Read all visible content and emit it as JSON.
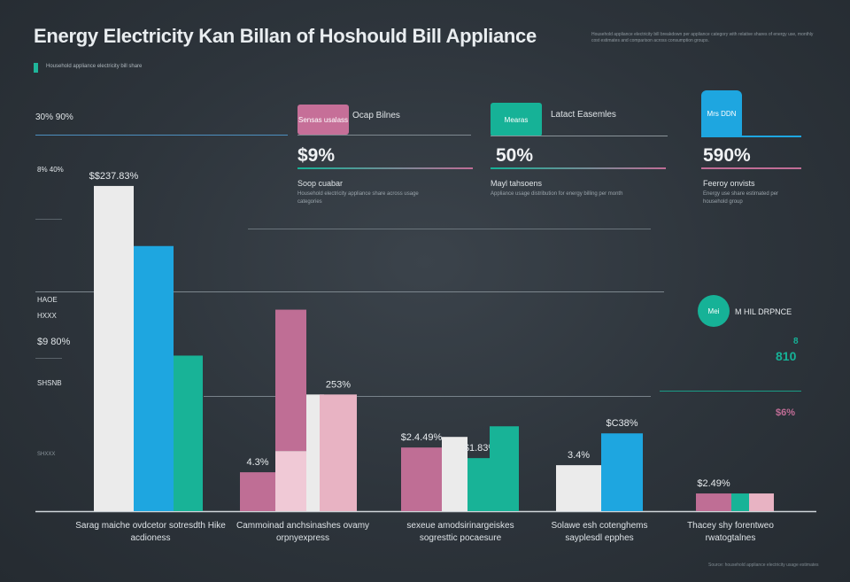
{
  "title": "Energy Electricity Kan Billan of Hoshould Bill Appliance",
  "top_note": "Household appliance electricity bill breakdown per appliance category with relative shares of energy use, monthly cost estimates and comparison across consumption groups.",
  "subtitle": "Household appliance electricity bill share",
  "colors": {
    "white": "#ebebeb",
    "blue": "#1ea6e0",
    "teal": "#18b397",
    "pink": "#bf6e95",
    "lightpink": "#f0c9d6",
    "rose": "#e8b3c3"
  },
  "y_labels": [
    "30% 90%",
    "8% 40%",
    "HAOE",
    "HXXX",
    "$9 80%",
    "SHSNB",
    "SHXXX"
  ],
  "cards": [
    {
      "tag": "Sensas usalass",
      "name": "Ocap Bilnes",
      "pct": "$9%",
      "head": "Soop cuabar",
      "note": "Household electricity appliance share across usage categories"
    },
    {
      "tag": "Mearas",
      "name": "Latact Easemles",
      "pct": "50%",
      "head": "Mayl tahsoens",
      "note": "Appliance usage distribution for energy billing per month"
    },
    {
      "tag": "Mrs DDN",
      "name": "",
      "pct": "590%",
      "head": "Feeroy onvists",
      "note": "Energy use share estimated per household group"
    }
  ],
  "legend_badge": {
    "text": "Mei",
    "label": "M HIL DRPNCE"
  },
  "side_values": [
    "8",
    "810",
    "$6%"
  ],
  "chart_data": {
    "type": "bar",
    "ylim": [
      0,
      100
    ],
    "groups": [
      {
        "label": "Sarag maiche ovdcetor sotresdth Hike acdioness",
        "bars": [
          {
            "value": 92,
            "color": "white",
            "label": "$$237.83%"
          },
          {
            "value": 75,
            "color": "blue",
            "label": ""
          },
          {
            "value": 44,
            "color": "teal",
            "label": ""
          }
        ]
      },
      {
        "label": "Cammoinad anchsinashes ovamy orpnyexpress",
        "bars": [
          {
            "value": 11,
            "color": "pink",
            "label": "4.3%"
          },
          {
            "value": 57,
            "color": "pink",
            "label": "",
            "stack_base": 17
          },
          {
            "value": 17,
            "color": "lightpink",
            "label": ""
          },
          {
            "value": 33,
            "color": "white",
            "label": ""
          },
          {
            "value": 33,
            "color": "rose",
            "label": "253%"
          }
        ]
      },
      {
        "label": "sexeue amodsirinargeiskes sogresttic pocaesure",
        "bars": [
          {
            "value": 18,
            "color": "pink",
            "label": "$2.4.49%"
          },
          {
            "value": 21,
            "color": "white",
            "label": ""
          },
          {
            "value": 15,
            "color": "teal",
            "label": "$1.83%"
          },
          {
            "value": 24,
            "color": "teal",
            "label": ""
          }
        ]
      },
      {
        "label": "Solawe esh cotenghems sayplesdl epphes",
        "bars": [
          {
            "value": 13,
            "color": "white",
            "label": "3.4%"
          },
          {
            "value": 22,
            "color": "blue",
            "label": "$C38%"
          }
        ]
      },
      {
        "label": "Thacey shy forentweo rwatogtalnes",
        "bars": [
          {
            "value": 5,
            "color": "pink",
            "label": "$2.49%"
          },
          {
            "value": 5,
            "color": "teal",
            "label": ""
          },
          {
            "value": 5,
            "color": "rose",
            "label": ""
          }
        ]
      }
    ]
  },
  "bottom_note": "Source: household appliance electricity usage estimates"
}
